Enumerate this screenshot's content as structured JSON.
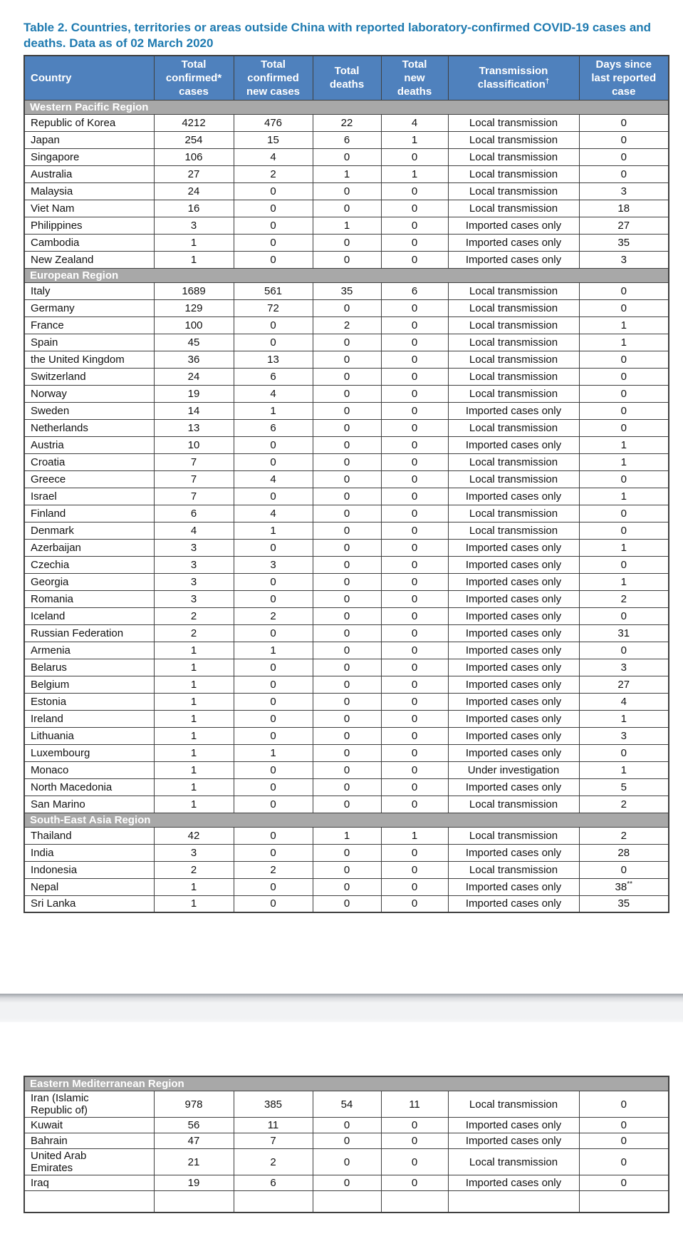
{
  "caption": "Table 2. Countries, territories or areas outside China with reported laboratory-confirmed COVID-19 cases and deaths. Data as of 02 March 2020",
  "colors": {
    "header_bg": "#4f81bd",
    "region_bg": "#a8a8a8",
    "caption_color": "#1e7ab0"
  },
  "columns": [
    {
      "label": "Country",
      "sup": ""
    },
    {
      "label": "Total confirmed* cases",
      "sup": ""
    },
    {
      "label": "Total confirmed new cases",
      "sup": ""
    },
    {
      "label": "Total deaths",
      "sup": ""
    },
    {
      "label": "Total new deaths",
      "sup": ""
    },
    {
      "label": "Transmission classification",
      "sup": "†"
    },
    {
      "label": "Days since last reported case",
      "sup": ""
    }
  ],
  "page1_sections": [
    {
      "region": "Western Pacific Region",
      "rows": [
        [
          "Republic of Korea",
          "4212",
          "476",
          "22",
          "4",
          "Local transmission",
          "0"
        ],
        [
          "Japan",
          "254",
          "15",
          "6",
          "1",
          "Local transmission",
          "0"
        ],
        [
          "Singapore",
          "106",
          "4",
          "0",
          "0",
          "Local transmission",
          "0"
        ],
        [
          "Australia",
          "27",
          "2",
          "1",
          "1",
          "Local transmission",
          "0"
        ],
        [
          "Malaysia",
          "24",
          "0",
          "0",
          "0",
          "Local transmission",
          "3"
        ],
        [
          "Viet Nam",
          "16",
          "0",
          "0",
          "0",
          "Local transmission",
          "18"
        ],
        [
          "Philippines",
          "3",
          "0",
          "1",
          "0",
          "Imported cases only",
          "27"
        ],
        [
          "Cambodia",
          "1",
          "0",
          "0",
          "0",
          "Imported cases only",
          "35"
        ],
        [
          "New Zealand",
          "1",
          "0",
          "0",
          "0",
          "Imported cases only",
          "3"
        ]
      ]
    },
    {
      "region": "European Region",
      "rows": [
        [
          "Italy",
          "1689",
          "561",
          "35",
          "6",
          "Local transmission",
          "0"
        ],
        [
          "Germany",
          "129",
          "72",
          "0",
          "0",
          "Local transmission",
          "0"
        ],
        [
          "France",
          "100",
          "0",
          "2",
          "0",
          "Local transmission",
          "1"
        ],
        [
          "Spain",
          "45",
          "0",
          "0",
          "0",
          "Local transmission",
          "1"
        ],
        [
          "the United Kingdom",
          "36",
          "13",
          "0",
          "0",
          "Local transmission",
          "0"
        ],
        [
          "Switzerland",
          "24",
          "6",
          "0",
          "0",
          "Local transmission",
          "0"
        ],
        [
          "Norway",
          "19",
          "4",
          "0",
          "0",
          "Local transmission",
          "0"
        ],
        [
          "Sweden",
          "14",
          "1",
          "0",
          "0",
          "Imported cases only",
          "0"
        ],
        [
          "Netherlands",
          "13",
          "6",
          "0",
          "0",
          "Local transmission",
          "0"
        ],
        [
          "Austria",
          "10",
          "0",
          "0",
          "0",
          "Imported cases only",
          "1"
        ],
        [
          "Croatia",
          "7",
          "0",
          "0",
          "0",
          "Local transmission",
          "1"
        ],
        [
          "Greece",
          "7",
          "4",
          "0",
          "0",
          "Local transmission",
          "0"
        ],
        [
          "Israel",
          "7",
          "0",
          "0",
          "0",
          "Imported cases only",
          "1"
        ],
        [
          "Finland",
          "6",
          "4",
          "0",
          "0",
          "Local transmission",
          "0"
        ],
        [
          "Denmark",
          "4",
          "1",
          "0",
          "0",
          "Local transmission",
          "0"
        ],
        [
          "Azerbaijan",
          "3",
          "0",
          "0",
          "0",
          "Imported cases only",
          "1"
        ],
        [
          "Czechia",
          "3",
          "3",
          "0",
          "0",
          "Imported cases only",
          "0"
        ],
        [
          "Georgia",
          "3",
          "0",
          "0",
          "0",
          "Imported cases only",
          "1"
        ],
        [
          "Romania",
          "3",
          "0",
          "0",
          "0",
          "Imported cases only",
          "2"
        ],
        [
          "Iceland",
          "2",
          "2",
          "0",
          "0",
          "Imported cases only",
          "0"
        ],
        [
          "Russian Federation",
          "2",
          "0",
          "0",
          "0",
          "Imported cases only",
          "31"
        ],
        [
          "Armenia",
          "1",
          "1",
          "0",
          "0",
          "Imported cases only",
          "0"
        ],
        [
          "Belarus",
          "1",
          "0",
          "0",
          "0",
          "Imported cases only",
          "3"
        ],
        [
          "Belgium",
          "1",
          "0",
          "0",
          "0",
          "Imported cases only",
          "27"
        ],
        [
          "Estonia",
          "1",
          "0",
          "0",
          "0",
          "Imported cases only",
          "4"
        ],
        [
          "Ireland",
          "1",
          "0",
          "0",
          "0",
          "Imported cases only",
          "1"
        ],
        [
          "Lithuania",
          "1",
          "0",
          "0",
          "0",
          "Imported cases only",
          "3"
        ],
        [
          "Luxembourg",
          "1",
          "1",
          "0",
          "0",
          "Imported cases only",
          "0"
        ],
        [
          "Monaco",
          "1",
          "0",
          "0",
          "0",
          "Under investigation",
          "1"
        ],
        [
          "North Macedonia",
          "1",
          "0",
          "0",
          "0",
          "Imported cases only",
          "5"
        ],
        [
          "San Marino",
          "1",
          "0",
          "0",
          "0",
          "Local transmission",
          "2"
        ]
      ]
    },
    {
      "region": "South-East Asia Region",
      "rows": [
        [
          "Thailand",
          "42",
          "0",
          "1",
          "1",
          "Local transmission",
          "2"
        ],
        [
          "India",
          "3",
          "0",
          "0",
          "0",
          "Imported cases only",
          "28"
        ],
        [
          "Indonesia",
          "2",
          "2",
          "0",
          "0",
          "Local transmission",
          "0"
        ],
        [
          "Nepal",
          "1",
          "0",
          "0",
          "0",
          "Imported cases only",
          "38**"
        ],
        [
          "Sri Lanka",
          "1",
          "0",
          "0",
          "0",
          "Imported cases only",
          "35"
        ]
      ]
    }
  ],
  "page2_sections": [
    {
      "region": "Eastern Mediterranean Region",
      "rows": [
        [
          "Iran (Islamic Republic of)",
          "978",
          "385",
          "54",
          "11",
          "Local transmission",
          "0"
        ],
        [
          "Kuwait",
          "56",
          "11",
          "0",
          "0",
          "Imported cases only",
          "0"
        ],
        [
          "Bahrain",
          "47",
          "7",
          "0",
          "0",
          "Imported cases only",
          "0"
        ],
        [
          "United Arab Emirates",
          "21",
          "2",
          "0",
          "0",
          "Local transmission",
          "0"
        ],
        [
          "Iraq",
          "19",
          "6",
          "0",
          "0",
          "Imported cases only",
          "0"
        ]
      ]
    }
  ]
}
